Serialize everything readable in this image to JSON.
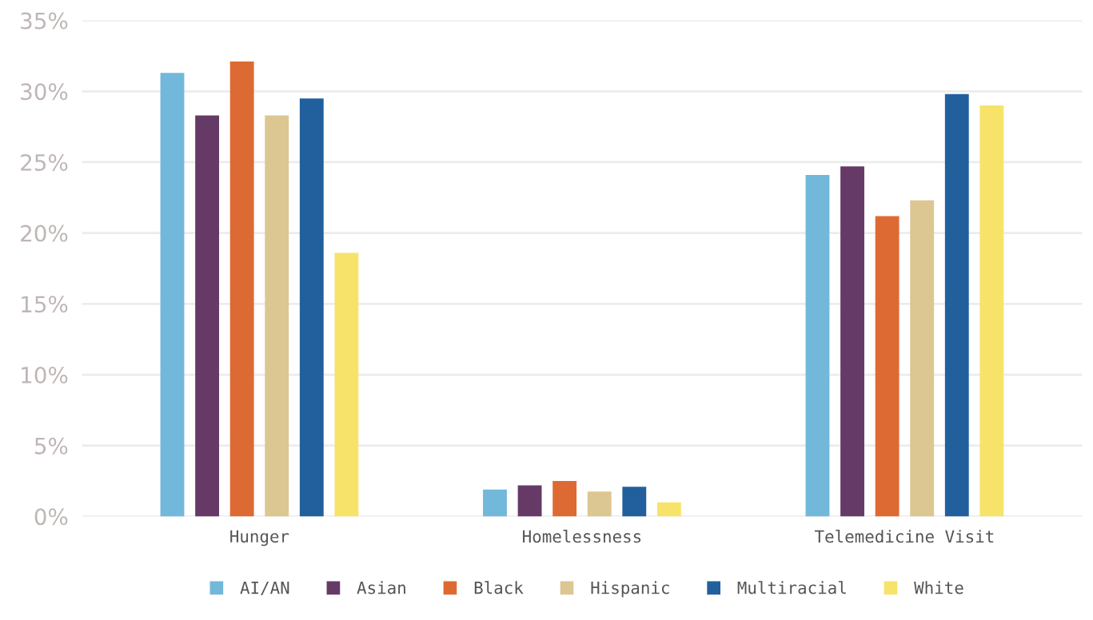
{
  "chart_data": {
    "type": "bar",
    "categories": [
      "Hunger",
      "Homelessness",
      "Telemedicine Visit"
    ],
    "series": [
      {
        "name": "AI/AN",
        "color": "#72b8da",
        "values": [
          31.3,
          1.9,
          24.1
        ]
      },
      {
        "name": "Asian",
        "color": "#663a67",
        "values": [
          28.3,
          2.2,
          24.7
        ]
      },
      {
        "name": "Black",
        "color": "#de6a33",
        "values": [
          32.1,
          2.5,
          21.2
        ]
      },
      {
        "name": "Hispanic",
        "color": "#dcc692",
        "values": [
          28.3,
          1.75,
          22.3
        ]
      },
      {
        "name": "Multiracial",
        "color": "#21609d",
        "values": [
          29.5,
          2.1,
          29.8
        ]
      },
      {
        "name": "White",
        "color": "#f7e36a",
        "values": [
          18.6,
          1.0,
          29.0
        ]
      }
    ],
    "ylim": [
      0,
      35
    ],
    "yticks": [
      {
        "value": 0,
        "label": "0%"
      },
      {
        "value": 5,
        "label": "5%"
      },
      {
        "value": 10,
        "label": "10%"
      },
      {
        "value": 15,
        "label": "15%"
      },
      {
        "value": 20,
        "label": "20%"
      },
      {
        "value": 25,
        "label": "25%"
      },
      {
        "value": 30,
        "label": "30%"
      },
      {
        "value": 35,
        "label": "35%"
      }
    ],
    "grid": "y",
    "legend": "bottom"
  }
}
